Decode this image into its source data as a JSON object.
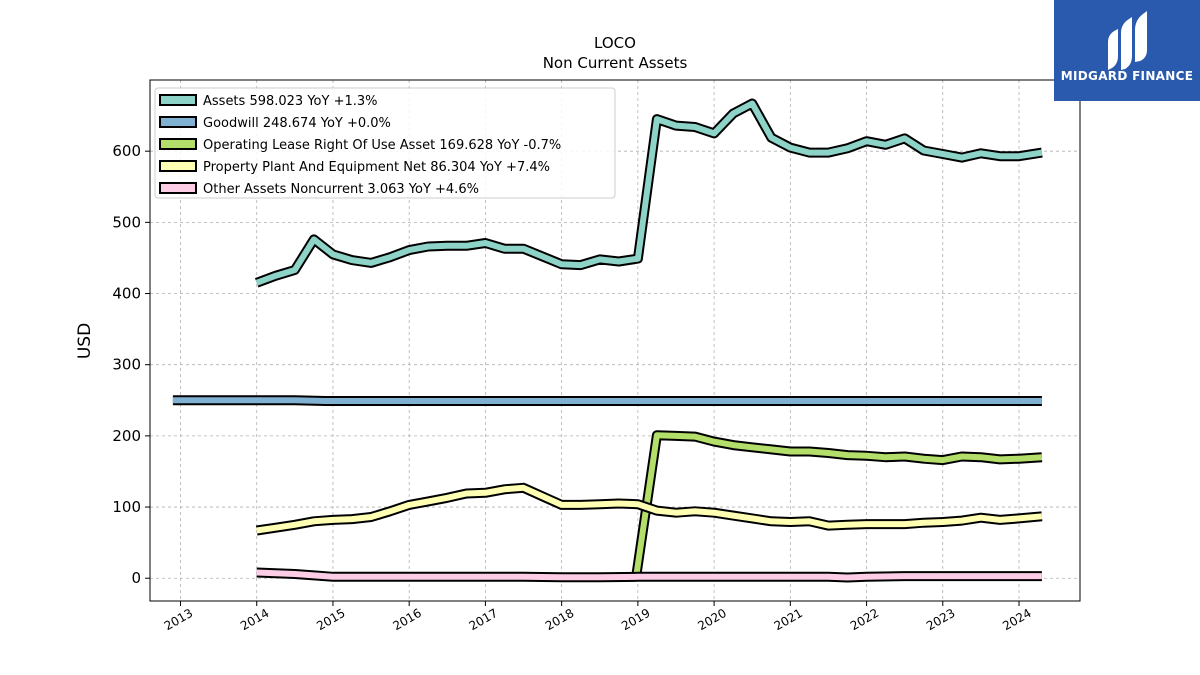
{
  "logo": {
    "text": "MIDGARD FINANCE",
    "bg": "#2a5aad"
  },
  "chart_data": {
    "type": "line",
    "title": "LOCO",
    "subtitle": "Non Current  Assets",
    "ylabel": "USD",
    "xlabel": "",
    "xlim": [
      2012.6,
      2024.8
    ],
    "ylim": [
      -32,
      700
    ],
    "yticks": [
      0,
      100,
      200,
      300,
      400,
      500,
      600
    ],
    "xticks": [
      2013,
      2014,
      2015,
      2016,
      2017,
      2018,
      2019,
      2020,
      2021,
      2022,
      2023,
      2024
    ],
    "grid": true,
    "legend_position": "top-left",
    "series": [
      {
        "name": "Assets",
        "legend": "Assets  598.023 YoY +1.3%",
        "color": "#8dd3c7",
        "x": [
          2014.0,
          2014.25,
          2014.5,
          2014.75,
          2015.0,
          2015.25,
          2015.5,
          2015.75,
          2016.0,
          2016.25,
          2016.5,
          2016.75,
          2017.0,
          2017.25,
          2017.5,
          2017.75,
          2018.0,
          2018.25,
          2018.5,
          2018.75,
          2019.0,
          2019.25,
          2019.5,
          2019.75,
          2020.0,
          2020.25,
          2020.5,
          2020.75,
          2021.0,
          2021.25,
          2021.5,
          2021.75,
          2022.0,
          2022.25,
          2022.5,
          2022.75,
          2023.0,
          2023.25,
          2023.5,
          2023.75,
          2024.0,
          2024.3
        ],
        "y": [
          415,
          425,
          433,
          476,
          455,
          447,
          443,
          451,
          461,
          466,
          467,
          467,
          471,
          463,
          463,
          452,
          441,
          440,
          448,
          445,
          449,
          645,
          636,
          634,
          625,
          653,
          667,
          619,
          605,
          598,
          598,
          604,
          614,
          609,
          618,
          601,
          596,
          591,
          597,
          593,
          593,
          598
        ]
      },
      {
        "name": "Goodwill",
        "legend": "Goodwill  248.674 YoY +0.0%",
        "color": "#80b1d3",
        "x": [
          2012.9,
          2013.5,
          2014.0,
          2014.5,
          2014.9,
          2015.5,
          2016.0,
          2017.0,
          2018.0,
          2019.0,
          2020.0,
          2021.0,
          2022.0,
          2023.0,
          2024.0,
          2024.3
        ],
        "y": [
          250,
          250,
          250,
          250,
          249,
          249,
          249,
          249,
          249,
          249,
          249,
          249,
          249,
          249,
          249,
          249
        ]
      },
      {
        "name": "Operating Lease Right Of Use Asset",
        "legend": "Operating Lease Right Of Use Asset  169.628 YoY -0.7%",
        "color": "#b3de69",
        "x": [
          2018.97,
          2019.25,
          2019.5,
          2019.75,
          2020.0,
          2020.25,
          2020.5,
          2020.75,
          2021.0,
          2021.25,
          2021.5,
          2021.75,
          2022.0,
          2022.25,
          2022.5,
          2022.75,
          2023.0,
          2023.25,
          2023.5,
          2023.75,
          2024.0,
          2024.3
        ],
        "y": [
          -3,
          201,
          200,
          199,
          192,
          187,
          184,
          181,
          178,
          178,
          176,
          173,
          172,
          170,
          171,
          168,
          166,
          171,
          170,
          167,
          168,
          170
        ]
      },
      {
        "name": "Property Plant And Equipment Net",
        "legend": "Property Plant And Equipment Net  86.304 YoY +7.4%",
        "color": "#ffffb3",
        "x": [
          2014.0,
          2014.25,
          2014.5,
          2014.75,
          2015.0,
          2015.25,
          2015.5,
          2015.75,
          2016.0,
          2016.25,
          2016.5,
          2016.75,
          2017.0,
          2017.25,
          2017.5,
          2017.75,
          2018.0,
          2018.25,
          2018.5,
          2018.75,
          2019.0,
          2019.25,
          2019.5,
          2019.75,
          2020.0,
          2020.25,
          2020.5,
          2020.75,
          2021.0,
          2021.25,
          2021.5,
          2021.75,
          2022.0,
          2022.25,
          2022.5,
          2022.75,
          2023.0,
          2023.25,
          2023.5,
          2023.75,
          2024.0,
          2024.3
        ],
        "y": [
          67,
          71,
          75,
          80,
          82,
          83,
          86,
          94,
          103,
          108,
          113,
          119,
          120,
          125,
          127,
          115,
          103,
          103,
          104,
          105,
          104,
          95,
          92,
          94,
          92,
          88,
          84,
          80,
          79,
          80,
          74,
          75,
          76,
          76,
          76,
          78,
          79,
          81,
          85,
          82,
          84,
          87
        ]
      },
      {
        "name": "Other Assets Noncurrent",
        "legend": "Other Assets Noncurrent  3.063 YoY +4.6%",
        "color": "#fccde5",
        "x": [
          2014.0,
          2014.5,
          2014.75,
          2015.0,
          2015.5,
          2016.0,
          2016.5,
          2017.0,
          2017.5,
          2018.0,
          2018.5,
          2019.0,
          2019.5,
          2020.0,
          2020.5,
          2021.0,
          2021.5,
          2021.75,
          2022.0,
          2022.5,
          2023.0,
          2023.5,
          2024.0,
          2024.3
        ],
        "y": [
          8,
          6,
          4,
          2,
          2,
          2,
          2,
          2,
          2,
          1.5,
          1.5,
          2,
          2,
          2,
          2,
          2,
          2,
          1,
          2,
          3,
          3,
          3,
          3,
          3
        ]
      }
    ]
  }
}
